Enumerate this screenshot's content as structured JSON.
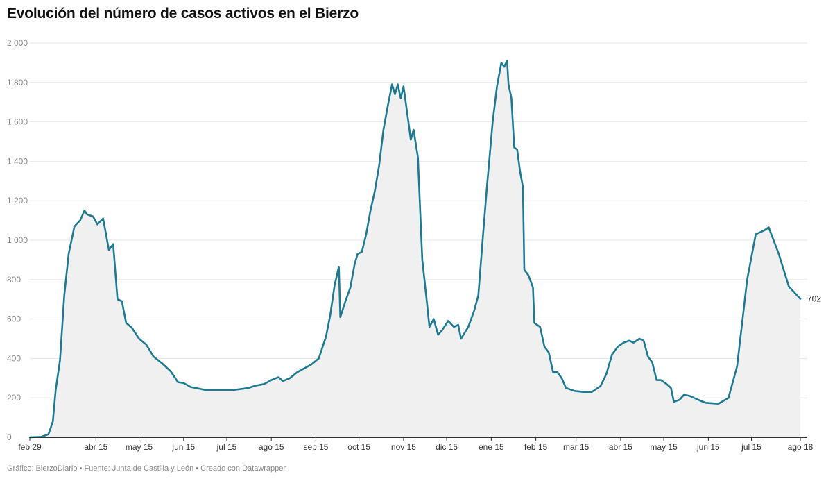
{
  "title": "Evolución del número de casos activos en el Bierzo",
  "footer": "Gráfico: BierzoDiario • Fuente: Junta de Castilla y León • Creado con Datawrapper",
  "colors": {
    "line": "#1d7a93",
    "area": "#f0f0f0",
    "grid": "#e6e6e6",
    "axis": "#333333"
  },
  "chart_data": {
    "type": "area",
    "title": "Evolución del número de casos activos en el Bierzo",
    "xlabel": "",
    "ylabel": "",
    "ylim": [
      0,
      2000
    ],
    "xlim": [
      "2020-02-29",
      "2021-08-18"
    ],
    "grid": true,
    "legend": "none",
    "y_ticks": [
      0,
      200,
      400,
      600,
      800,
      1000,
      1200,
      1400,
      1600,
      1800,
      2000
    ],
    "y_tick_labels": [
      "0",
      "200",
      "400",
      "600",
      "800",
      "1 000",
      "1 200",
      "1 400",
      "1 600",
      "1 800",
      "2 000"
    ],
    "x_ticks": [
      {
        "date": "2020-02-29",
        "label": "feb 29"
      },
      {
        "date": "2020-04-15",
        "label": "abr 15"
      },
      {
        "date": "2020-05-15",
        "label": "may 15"
      },
      {
        "date": "2020-06-15",
        "label": "jun 15"
      },
      {
        "date": "2020-07-15",
        "label": "jul 15"
      },
      {
        "date": "2020-08-15",
        "label": "ago 15"
      },
      {
        "date": "2020-09-15",
        "label": "sep 15"
      },
      {
        "date": "2020-10-15",
        "label": "oct 15"
      },
      {
        "date": "2020-11-15",
        "label": "nov 15"
      },
      {
        "date": "2020-12-15",
        "label": "dic 15"
      },
      {
        "date": "2021-01-15",
        "label": "ene 15"
      },
      {
        "date": "2021-02-15",
        "label": "feb 15"
      },
      {
        "date": "2021-03-15",
        "label": "mar 15"
      },
      {
        "date": "2021-04-15",
        "label": "abr 15"
      },
      {
        "date": "2021-05-15",
        "label": "may 15"
      },
      {
        "date": "2021-06-15",
        "label": "jun 15"
      },
      {
        "date": "2021-07-15",
        "label": "jul 15"
      },
      {
        "date": "2021-08-18",
        "label": "ago 18"
      }
    ],
    "last_value_label": "702",
    "series": [
      {
        "points": [
          [
            "2020-02-29",
            0
          ],
          [
            "2020-03-08",
            2
          ],
          [
            "2020-03-13",
            15
          ],
          [
            "2020-03-16",
            80
          ],
          [
            "2020-03-18",
            240
          ],
          [
            "2020-03-21",
            390
          ],
          [
            "2020-03-24",
            720
          ],
          [
            "2020-03-27",
            930
          ],
          [
            "2020-03-31",
            1070
          ],
          [
            "2020-04-04",
            1100
          ],
          [
            "2020-04-07",
            1150
          ],
          [
            "2020-04-09",
            1130
          ],
          [
            "2020-04-13",
            1120
          ],
          [
            "2020-04-16",
            1080
          ],
          [
            "2020-04-20",
            1110
          ],
          [
            "2020-04-24",
            950
          ],
          [
            "2020-04-27",
            980
          ],
          [
            "2020-04-30",
            700
          ],
          [
            "2020-05-03",
            690
          ],
          [
            "2020-05-06",
            580
          ],
          [
            "2020-05-10",
            555
          ],
          [
            "2020-05-15",
            500
          ],
          [
            "2020-05-20",
            470
          ],
          [
            "2020-05-25",
            410
          ],
          [
            "2020-05-31",
            375
          ],
          [
            "2020-06-06",
            335
          ],
          [
            "2020-06-11",
            280
          ],
          [
            "2020-06-15",
            275
          ],
          [
            "2020-06-20",
            255
          ],
          [
            "2020-06-25",
            248
          ],
          [
            "2020-06-30",
            240
          ],
          [
            "2020-07-10",
            240
          ],
          [
            "2020-07-20",
            240
          ],
          [
            "2020-07-25",
            245
          ],
          [
            "2020-07-30",
            250
          ],
          [
            "2020-08-04",
            262
          ],
          [
            "2020-08-10",
            270
          ],
          [
            "2020-08-15",
            290
          ],
          [
            "2020-08-20",
            305
          ],
          [
            "2020-08-23",
            285
          ],
          [
            "2020-08-28",
            300
          ],
          [
            "2020-09-02",
            330
          ],
          [
            "2020-09-07",
            350
          ],
          [
            "2020-09-12",
            370
          ],
          [
            "2020-09-17",
            400
          ],
          [
            "2020-09-22",
            510
          ],
          [
            "2020-09-25",
            620
          ],
          [
            "2020-09-28",
            770
          ],
          [
            "2020-10-01",
            865
          ],
          [
            "2020-10-02",
            610
          ],
          [
            "2020-10-06",
            700
          ],
          [
            "2020-10-09",
            760
          ],
          [
            "2020-10-12",
            880
          ],
          [
            "2020-10-14",
            930
          ],
          [
            "2020-10-17",
            940
          ],
          [
            "2020-10-20",
            1030
          ],
          [
            "2020-10-23",
            1150
          ],
          [
            "2020-10-26",
            1250
          ],
          [
            "2020-10-29",
            1380
          ],
          [
            "2020-11-01",
            1560
          ],
          [
            "2020-11-04",
            1680
          ],
          [
            "2020-11-07",
            1790
          ],
          [
            "2020-11-09",
            1740
          ],
          [
            "2020-11-11",
            1790
          ],
          [
            "2020-11-13",
            1720
          ],
          [
            "2020-11-15",
            1780
          ],
          [
            "2020-11-18",
            1620
          ],
          [
            "2020-11-20",
            1510
          ],
          [
            "2020-11-22",
            1560
          ],
          [
            "2020-11-25",
            1420
          ],
          [
            "2020-11-28",
            900
          ],
          [
            "2020-12-01",
            700
          ],
          [
            "2020-12-03",
            560
          ],
          [
            "2020-12-06",
            600
          ],
          [
            "2020-12-09",
            520
          ],
          [
            "2020-12-12",
            545
          ],
          [
            "2020-12-16",
            590
          ],
          [
            "2020-12-20",
            560
          ],
          [
            "2020-12-23",
            570
          ],
          [
            "2020-12-25",
            500
          ],
          [
            "2020-12-30",
            560
          ],
          [
            "2021-01-03",
            640
          ],
          [
            "2021-01-06",
            720
          ],
          [
            "2021-01-09",
            1000
          ],
          [
            "2021-01-12",
            1270
          ],
          [
            "2021-01-16",
            1600
          ],
          [
            "2021-01-19",
            1780
          ],
          [
            "2021-01-22",
            1900
          ],
          [
            "2021-01-24",
            1880
          ],
          [
            "2021-01-26",
            1910
          ],
          [
            "2021-01-27",
            1790
          ],
          [
            "2021-01-29",
            1720
          ],
          [
            "2021-01-31",
            1470
          ],
          [
            "2021-02-02",
            1460
          ],
          [
            "2021-02-04",
            1350
          ],
          [
            "2021-02-06",
            1270
          ],
          [
            "2021-02-07",
            850
          ],
          [
            "2021-02-10",
            820
          ],
          [
            "2021-02-13",
            760
          ],
          [
            "2021-02-14",
            580
          ],
          [
            "2021-02-18",
            560
          ],
          [
            "2021-02-21",
            460
          ],
          [
            "2021-02-24",
            430
          ],
          [
            "2021-02-27",
            330
          ],
          [
            "2021-03-02",
            330
          ],
          [
            "2021-03-05",
            300
          ],
          [
            "2021-03-08",
            250
          ],
          [
            "2021-03-14",
            235
          ],
          [
            "2021-03-20",
            230
          ],
          [
            "2021-03-26",
            230
          ],
          [
            "2021-04-01",
            260
          ],
          [
            "2021-04-05",
            320
          ],
          [
            "2021-04-09",
            420
          ],
          [
            "2021-04-13",
            460
          ],
          [
            "2021-04-17",
            480
          ],
          [
            "2021-04-21",
            490
          ],
          [
            "2021-04-24",
            480
          ],
          [
            "2021-04-28",
            500
          ],
          [
            "2021-05-01",
            490
          ],
          [
            "2021-05-04",
            410
          ],
          [
            "2021-05-07",
            380
          ],
          [
            "2021-05-10",
            290
          ],
          [
            "2021-05-13",
            290
          ],
          [
            "2021-05-17",
            270
          ],
          [
            "2021-05-20",
            250
          ],
          [
            "2021-05-22",
            180
          ],
          [
            "2021-05-26",
            190
          ],
          [
            "2021-05-29",
            215
          ],
          [
            "2021-06-02",
            210
          ],
          [
            "2021-06-08",
            190
          ],
          [
            "2021-06-13",
            175
          ],
          [
            "2021-06-22",
            170
          ],
          [
            "2021-06-29",
            200
          ],
          [
            "2021-07-05",
            360
          ],
          [
            "2021-07-12",
            800
          ],
          [
            "2021-07-18",
            1030
          ],
          [
            "2021-07-24",
            1050
          ],
          [
            "2021-07-27",
            1065
          ],
          [
            "2021-08-03",
            930
          ],
          [
            "2021-08-10",
            765
          ],
          [
            "2021-08-18",
            702
          ]
        ]
      }
    ]
  }
}
